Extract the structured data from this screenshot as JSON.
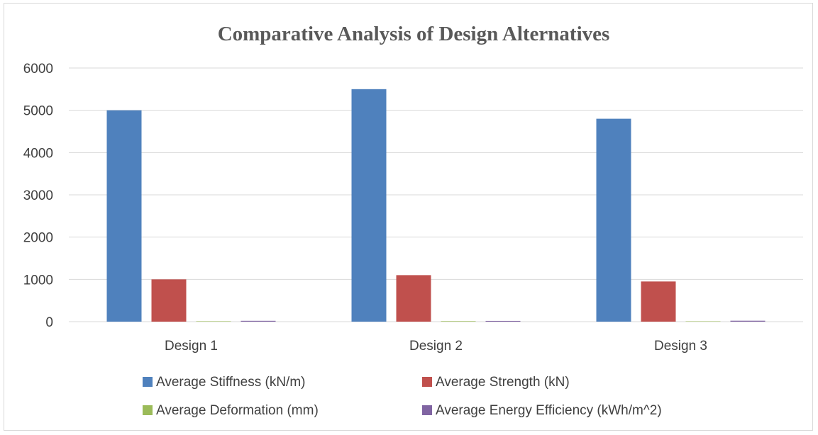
{
  "chart_data": {
    "type": "bar",
    "title": "Comparative Analysis of Design Alternatives",
    "categories": [
      "Design 1",
      "Design 2",
      "Design 3"
    ],
    "series": [
      {
        "name": "Average Stiffness (kN/m)",
        "color": "#4f81bd",
        "values": [
          5000,
          5500,
          4800
        ]
      },
      {
        "name": "Average Strength (kN)",
        "color": "#c0504d",
        "values": [
          1000,
          1100,
          950
        ]
      },
      {
        "name": "Average Deformation (mm)",
        "color": "#9bbb59",
        "values": [
          10,
          12,
          9
        ]
      },
      {
        "name": "Average Energy Efficiency (kWh/m^2)",
        "color": "#8064a2",
        "values": [
          20,
          18,
          22
        ]
      }
    ],
    "ylim": [
      0,
      6000
    ],
    "yticks": [
      0,
      1000,
      2000,
      3000,
      4000,
      5000,
      6000
    ],
    "grid": true,
    "legend_position": "bottom",
    "xlabel": "",
    "ylabel": ""
  }
}
